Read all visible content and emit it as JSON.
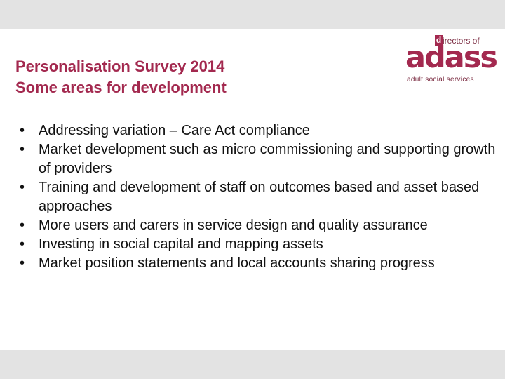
{
  "title": {
    "line1": "Personalisation Survey 2014",
    "line2": "Some areas for development"
  },
  "logo": {
    "initial": "d",
    "top_text": "irectors of",
    "word": "adass",
    "sub_text": "adult social services"
  },
  "bullet_symbol": "•",
  "bullets": [
    "Addressing variation – Care Act compliance",
    "Market development such as micro commissioning and supporting growth of providers",
    "Training and development of staff on outcomes based and asset based approaches",
    "More users and carers in service design and quality assurance",
    "Investing in social capital and mapping assets",
    "Market position statements and local accounts sharing progress"
  ],
  "colors": {
    "accent": "#a3294f",
    "text": "#111111",
    "frame": "#e3e3e3"
  }
}
